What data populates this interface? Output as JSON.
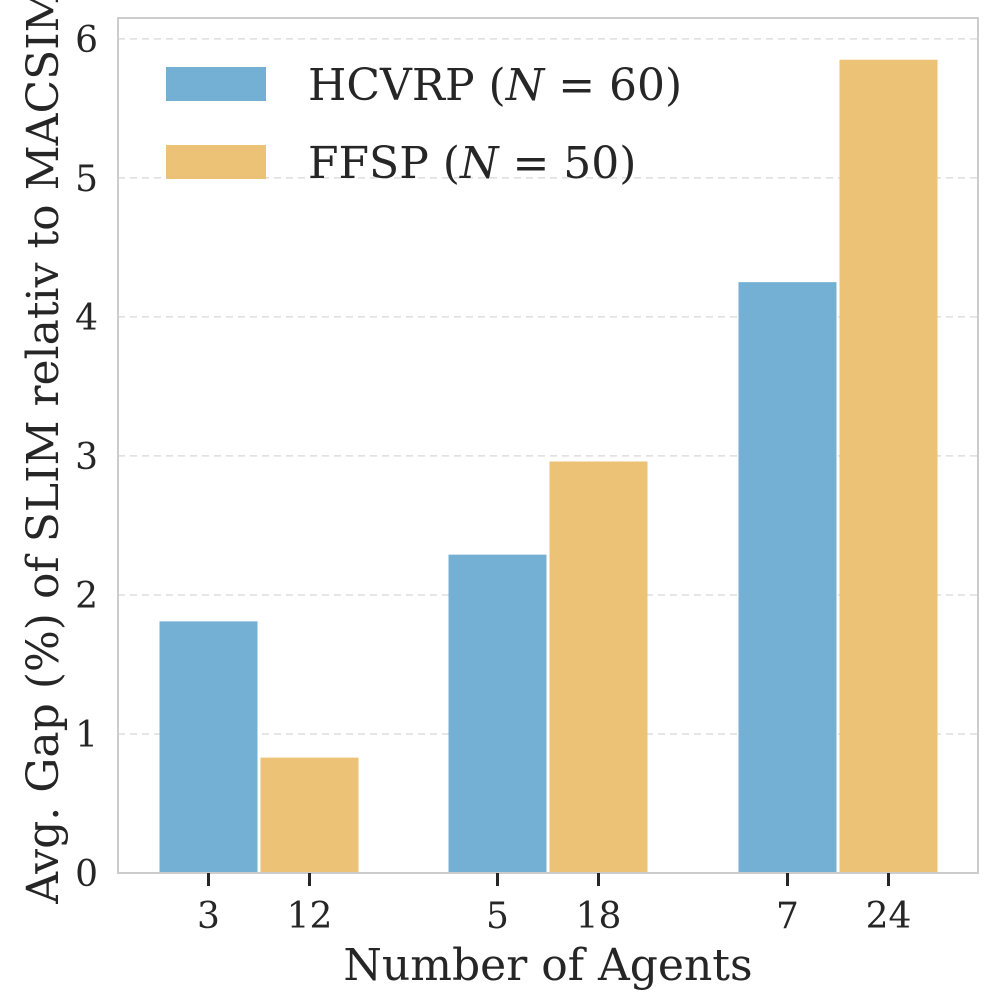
{
  "chart_data": {
    "type": "bar",
    "title": "",
    "xlabel": "Number of Agents",
    "ylabel": "Avg. Gap (%) of SLIM relativ to MACSIM",
    "ylim": [
      0,
      6.15
    ],
    "yticks": [
      0,
      1,
      2,
      3,
      4,
      5,
      6
    ],
    "grid": "horizontal dashed",
    "legend_position": "top-left",
    "groups": [
      {
        "hcvrp_tick": "3",
        "ffsp_tick": "12"
      },
      {
        "hcvrp_tick": "5",
        "ffsp_tick": "18"
      },
      {
        "hcvrp_tick": "7",
        "ffsp_tick": "24"
      }
    ],
    "series": [
      {
        "name": "HCVRP (N = 60)",
        "legend_prefix": "HCVRP (",
        "legend_var": "N",
        "legend_suffix": " = 60)",
        "color": "#74b0d4",
        "values": [
          1.81,
          2.29,
          4.25
        ]
      },
      {
        "name": "FFSP (N = 50)",
        "legend_prefix": "FFSP (",
        "legend_var": "N",
        "legend_suffix": " = 50)",
        "color": "#ecc277",
        "values": [
          0.83,
          2.96,
          5.85
        ]
      }
    ]
  }
}
